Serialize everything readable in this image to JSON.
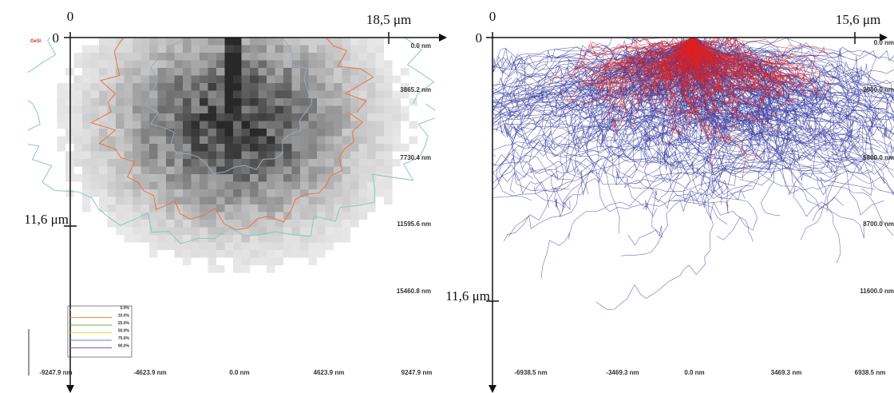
{
  "left": {
    "axis": {
      "x_zero": "0",
      "x_end": "18,5 μm",
      "y_zero": "0",
      "y_mark": "11,6 μm"
    },
    "material": "GeSi",
    "depth_labels": [
      "0.0 nm",
      "3865.2 nm",
      "7730.4 nm",
      "11595.6 nm",
      "15460.8 nm"
    ],
    "lateral_labels": [
      "-9247.9 nm",
      "-4623.9 nm",
      "0.0 nm",
      "4623.9 nm",
      "9247.9 nm"
    ],
    "legend": [
      "5.0%",
      "10.0%",
      "25.0%",
      "50.0%",
      "75.0%",
      "90.0%"
    ]
  },
  "right": {
    "axis": {
      "x_zero": "0",
      "x_end": "15,6 μm",
      "y_zero": "0",
      "y_mark": "11,6 μm"
    },
    "depth_labels": [
      "0.0 nm",
      "2900.0 nm",
      "5800.0 nm",
      "8700.0 nm",
      "11600.0 nm"
    ],
    "lateral_labels": [
      "-6938.5 nm",
      "-3469.3 nm",
      "0.0 nm",
      "3469.3 nm",
      "6938.5 nm"
    ]
  }
}
